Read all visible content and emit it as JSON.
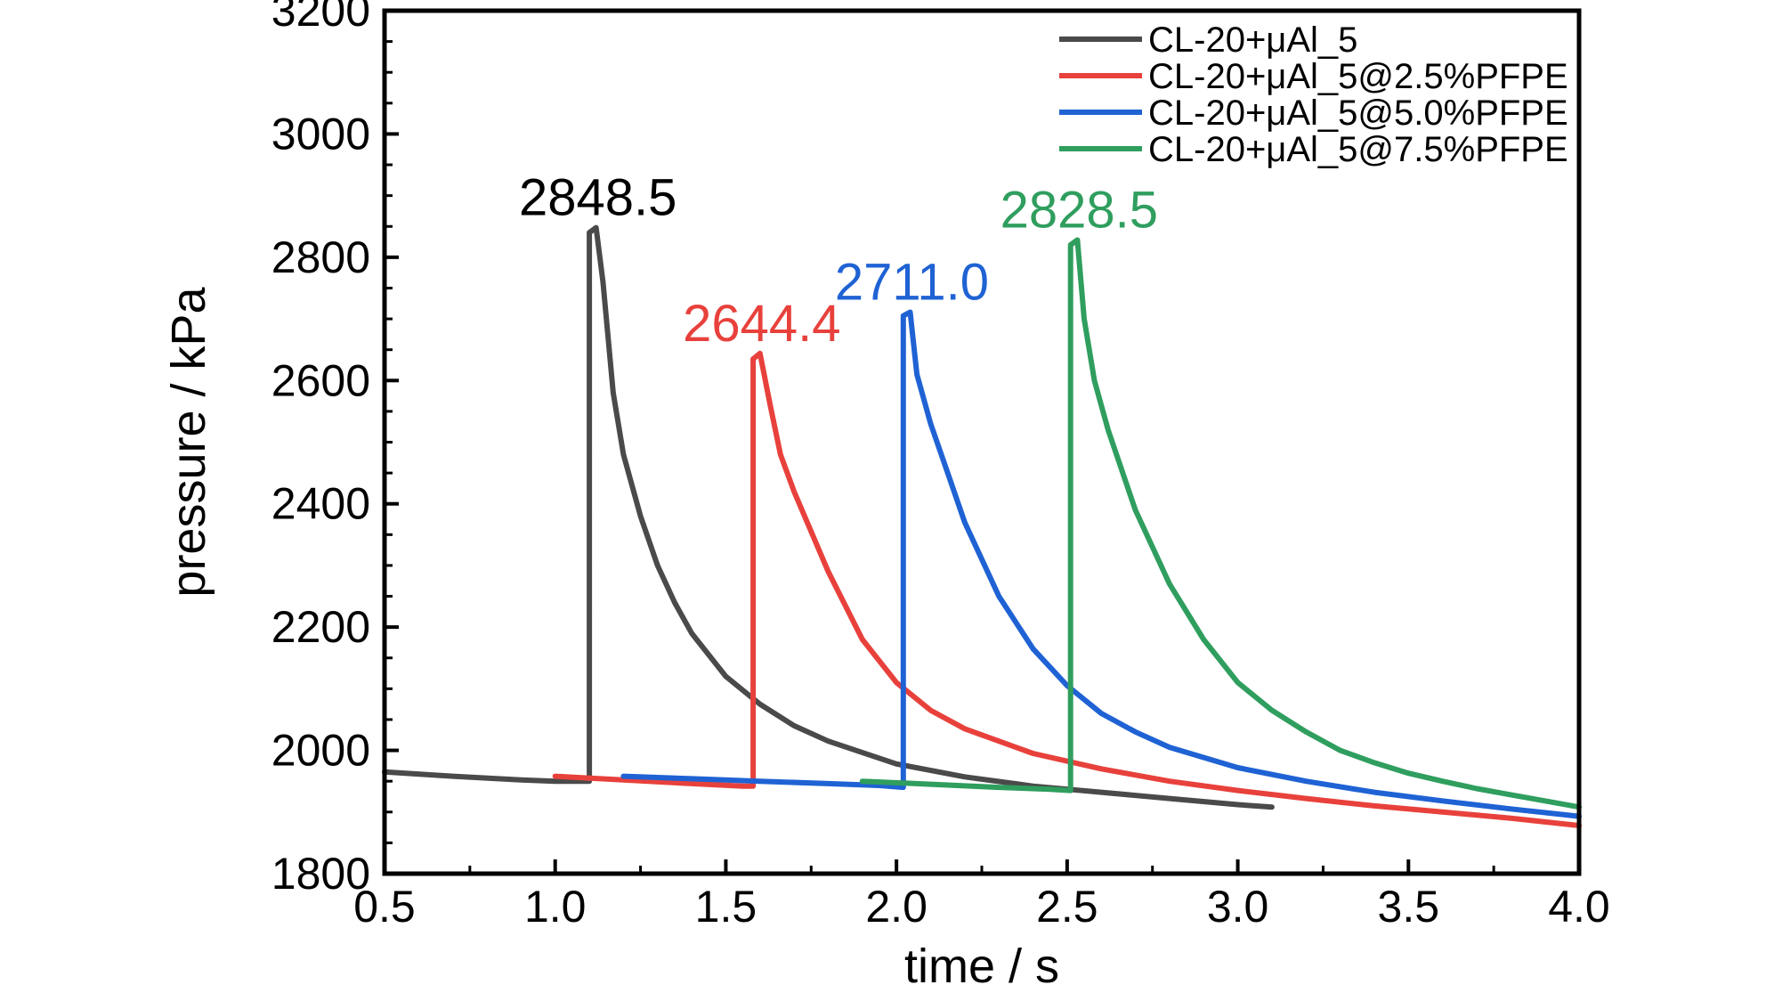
{
  "chart_data": {
    "type": "line",
    "title": "",
    "xlabel": "time / s",
    "ylabel": "pressure / kPa",
    "xlim": [
      0.5,
      4.0
    ],
    "ylim": [
      1800,
      3200
    ],
    "xticks": [
      "0.5",
      "1.0",
      "1.5",
      "2.0",
      "2.5",
      "3.0",
      "3.5",
      "4.0"
    ],
    "yticks": [
      "1800",
      "2000",
      "2200",
      "2400",
      "2600",
      "2800",
      "3000",
      "3200"
    ],
    "grid": false,
    "legend_position": "top-right",
    "series": [
      {
        "name": "CL-20+μAl_5",
        "color": "#4a4a4a",
        "peak_label": "2848.5",
        "x": [
          0.5,
          0.7,
          0.9,
          1.0,
          1.1,
          1.1,
          1.12,
          1.14,
          1.17,
          1.2,
          1.25,
          1.3,
          1.35,
          1.4,
          1.5,
          1.6,
          1.7,
          1.8,
          2.0,
          2.2,
          2.4,
          2.6,
          2.8,
          3.0,
          3.1
        ],
        "y": [
          1965,
          1958,
          1952,
          1950,
          1950,
          2840,
          2848,
          2760,
          2580,
          2480,
          2380,
          2300,
          2240,
          2190,
          2120,
          2075,
          2040,
          2015,
          1978,
          1957,
          1942,
          1932,
          1922,
          1912,
          1908
        ]
      },
      {
        "name": "CL-20+μAl_5@2.5%PFPE",
        "color": "#e8413c",
        "peak_label": "2644.4",
        "x": [
          1.0,
          1.2,
          1.4,
          1.55,
          1.58,
          1.58,
          1.6,
          1.63,
          1.66,
          1.7,
          1.8,
          1.9,
          2.0,
          2.1,
          2.2,
          2.4,
          2.6,
          2.8,
          3.0,
          3.2,
          3.4,
          3.6,
          3.8,
          4.0
        ],
        "y": [
          1958,
          1952,
          1946,
          1942,
          1942,
          2635,
          2644,
          2560,
          2480,
          2420,
          2290,
          2180,
          2110,
          2065,
          2035,
          1995,
          1970,
          1950,
          1935,
          1922,
          1910,
          1900,
          1890,
          1878
        ]
      },
      {
        "name": "CL-20+μAl_5@5.0%PFPE",
        "color": "#1f62d4",
        "peak_label": "2711.0",
        "x": [
          1.2,
          1.4,
          1.6,
          1.8,
          1.95,
          2.02,
          2.02,
          2.04,
          2.06,
          2.1,
          2.15,
          2.2,
          2.3,
          2.4,
          2.5,
          2.6,
          2.7,
          2.8,
          3.0,
          3.2,
          3.4,
          3.6,
          3.8,
          4.0
        ],
        "y": [
          1958,
          1954,
          1950,
          1946,
          1943,
          1940,
          2705,
          2711,
          2610,
          2530,
          2450,
          2370,
          2250,
          2165,
          2105,
          2060,
          2030,
          2005,
          1972,
          1950,
          1932,
          1918,
          1905,
          1893
        ]
      },
      {
        "name": "CL-20+μAl_5@7.5%PFPE",
        "color": "#2f9e5e",
        "peak_label": "2828.5",
        "x": [
          1.9,
          2.1,
          2.3,
          2.45,
          2.51,
          2.51,
          2.53,
          2.55,
          2.58,
          2.62,
          2.7,
          2.8,
          2.9,
          3.0,
          3.1,
          3.2,
          3.3,
          3.4,
          3.5,
          3.6,
          3.7,
          3.8,
          3.9,
          4.0
        ],
        "y": [
          1950,
          1945,
          1940,
          1937,
          1935,
          2820,
          2828,
          2700,
          2600,
          2520,
          2390,
          2270,
          2180,
          2110,
          2065,
          2030,
          2000,
          1980,
          1963,
          1950,
          1938,
          1928,
          1918,
          1908
        ]
      }
    ]
  }
}
